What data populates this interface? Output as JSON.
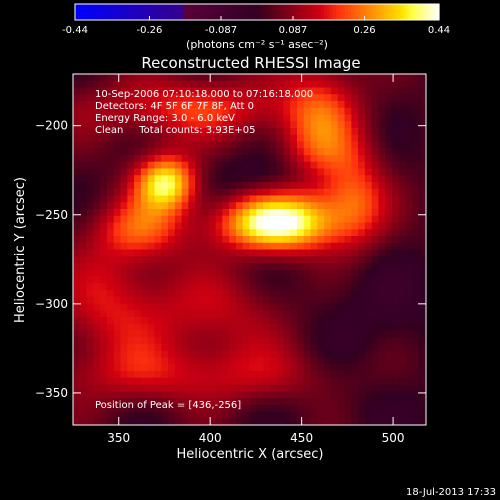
{
  "colorbar": {
    "ticks": [
      "-0.44",
      "-0.26",
      "-0.087",
      "0.087",
      "0.26",
      "0.44"
    ],
    "range": [
      -0.44,
      0.44
    ],
    "units_label": "(photons cm⁻² s⁻¹ asec⁻²)"
  },
  "chart_data": {
    "type": "heatmap",
    "title": "Reconstructed RHESSI Image",
    "xlabel": "Heliocentric X (arcsec)",
    "ylabel": "Heliocentric Y (arcsec)",
    "xlim": [
      325,
      518
    ],
    "ylim": [
      -368,
      -171
    ],
    "xticks": [
      350,
      400,
      450,
      500
    ],
    "yticks": [
      -200,
      -250,
      -300,
      -350
    ],
    "info_lines": [
      "10-Sep-2006 07:10:18.000 to 07:16:18.000",
      "Detectors: 4F 5F 6F 7F 8F, Att 0",
      "Energy Range: 3.0 - 6.0 keV",
      "Clean     Total counts: 3.93E+05"
    ],
    "peak_label": "Position of Peak = [436,-256]",
    "peak": [
      436,
      -256
    ],
    "sources": [
      {
        "x": 436,
        "y": -255,
        "amp": 0.42,
        "sx": 22,
        "sy": 11
      },
      {
        "x": 376,
        "y": -232,
        "amp": 0.36,
        "sx": 12,
        "sy": 11
      },
      {
        "x": 362,
        "y": -258,
        "amp": 0.18,
        "sx": 18,
        "sy": 12
      },
      {
        "x": 390,
        "y": -190,
        "amp": 0.17,
        "sx": 40,
        "sy": 12
      },
      {
        "x": 460,
        "y": -205,
        "amp": 0.2,
        "sx": 15,
        "sy": 30
      },
      {
        "x": 480,
        "y": -240,
        "amp": 0.18,
        "sx": 12,
        "sy": 20
      },
      {
        "x": 345,
        "y": -300,
        "amp": 0.12,
        "sx": 20,
        "sy": 25
      },
      {
        "x": 405,
        "y": -305,
        "amp": 0.12,
        "sx": 35,
        "sy": 18
      },
      {
        "x": 395,
        "y": -340,
        "amp": 0.12,
        "sx": 60,
        "sy": 12
      },
      {
        "x": 440,
        "y": -228,
        "amp": -0.06,
        "sx": 30,
        "sy": 8
      },
      {
        "x": 475,
        "y": -300,
        "amp": -0.05,
        "sx": 40,
        "sy": 20
      },
      {
        "x": 490,
        "y": -345,
        "amp": -0.03,
        "sx": 30,
        "sy": 20
      }
    ],
    "base_level": 0.02
  },
  "footer": {
    "timestamp": "18-Jul-2013 17:33"
  }
}
